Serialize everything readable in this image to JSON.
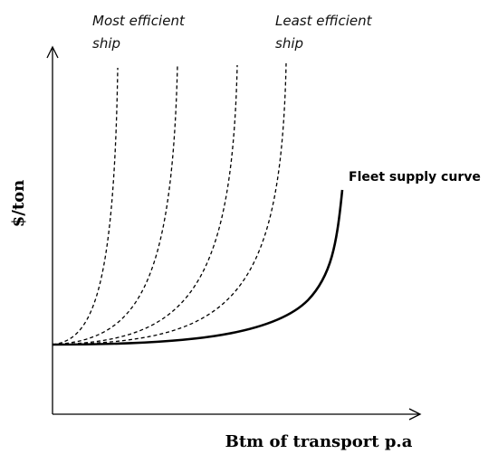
{
  "axes": {
    "y_label": "$/ton",
    "x_label": "Btm of transport p.a"
  },
  "annotations": {
    "most_efficient": [
      "Most efficient",
      "ship"
    ],
    "least_efficient": [
      "Least efficient",
      "ship"
    ],
    "fleet_supply": "Fleet supply curve"
  }
}
